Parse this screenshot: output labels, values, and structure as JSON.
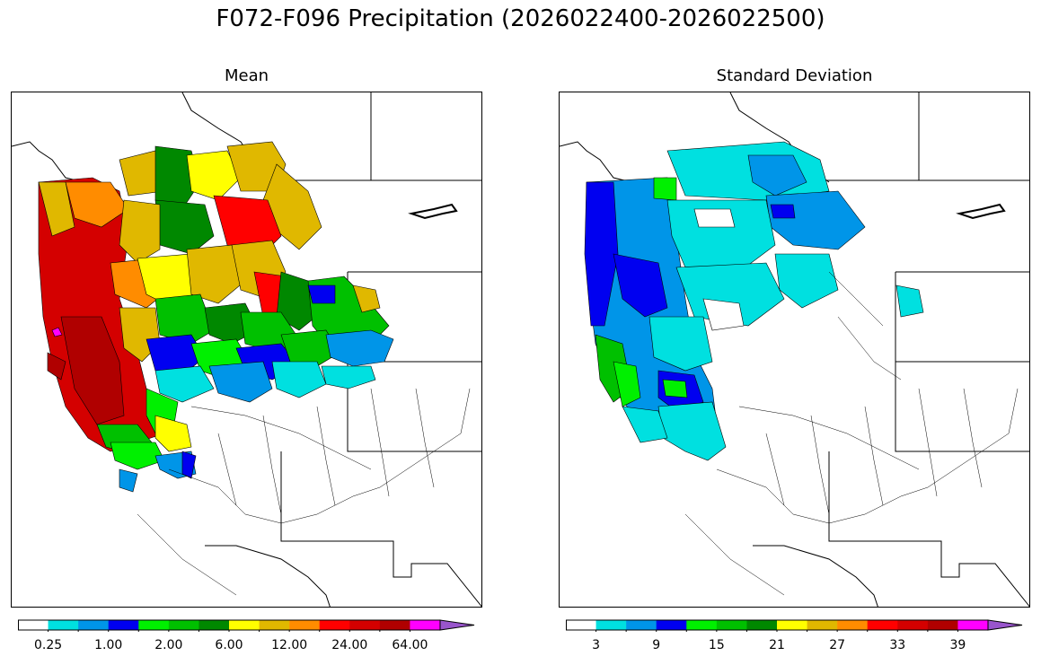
{
  "figure": {
    "title": "F072-F096 Precipitation (2026022400-2026022500)"
  },
  "chart_data": [
    {
      "type": "map",
      "title": "Mean",
      "region": "Western United States river basins",
      "colorbar": {
        "colors": [
          "#ffffff",
          "#00e0e0",
          "#0095e8",
          "#0000f0",
          "#00f000",
          "#00c000",
          "#008800",
          "#ffff00",
          "#e0b800",
          "#ff8c00",
          "#ff0000",
          "#d40000",
          "#b00000",
          "#ff00ff",
          "#9955cc"
        ],
        "tick_labels": [
          "0.25",
          "1.00",
          "2.00",
          "6.00",
          "12.00",
          "24.00",
          "64.00"
        ],
        "extend": "max"
      }
    },
    {
      "type": "map",
      "title": "Standard Deviation",
      "region": "Western United States river basins",
      "colorbar": {
        "colors": [
          "#ffffff",
          "#00e0e0",
          "#0095e8",
          "#0000f0",
          "#00f000",
          "#00c000",
          "#008800",
          "#ffff00",
          "#e0b800",
          "#ff8c00",
          "#ff0000",
          "#d40000",
          "#b00000",
          "#ff00ff",
          "#9955cc"
        ],
        "tick_labels": [
          "3",
          "9",
          "15",
          "21",
          "27",
          "33",
          "39"
        ],
        "extend": "max"
      }
    }
  ]
}
